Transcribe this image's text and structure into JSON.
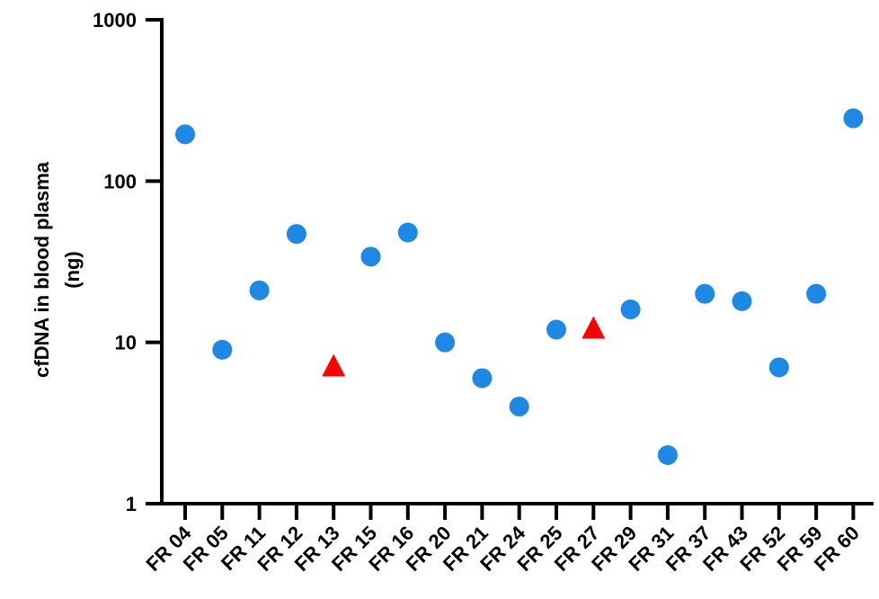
{
  "chart_data": {
    "type": "scatter",
    "title": "",
    "xlabel": "",
    "ylabel_lines": [
      "cfDNA in blood plasma",
      "(ng)"
    ],
    "yscale": "log",
    "ylim": [
      1,
      1000
    ],
    "yticks": [
      1,
      10,
      100,
      1000
    ],
    "ytick_labels": [
      "1",
      "10",
      "100",
      "1000"
    ],
    "grid": false,
    "legend": "none",
    "colors": {
      "circle": "#1E88E5",
      "triangle": "#FF0000",
      "axis": "#000000"
    },
    "categories": [
      "FR 04",
      "FR 05",
      "FR 11",
      "FR 12",
      "FR 13",
      "FR 15",
      "FR 16",
      "FR 20",
      "FR 21",
      "FR 24",
      "FR 25",
      "FR 27",
      "FR 29",
      "FR 31",
      "FR 37",
      "FR 43",
      "FR 52",
      "FR 59",
      "FR 60"
    ],
    "values": [
      195,
      9,
      21,
      47,
      7,
      34,
      48,
      10,
      6,
      4,
      12,
      12,
      16,
      2,
      20,
      18,
      7,
      20,
      245
    ],
    "markers": [
      "circle",
      "circle",
      "circle",
      "circle",
      "triangle",
      "circle",
      "circle",
      "circle",
      "circle",
      "circle",
      "circle",
      "triangle",
      "circle",
      "circle",
      "circle",
      "circle",
      "circle",
      "circle",
      "circle"
    ]
  }
}
